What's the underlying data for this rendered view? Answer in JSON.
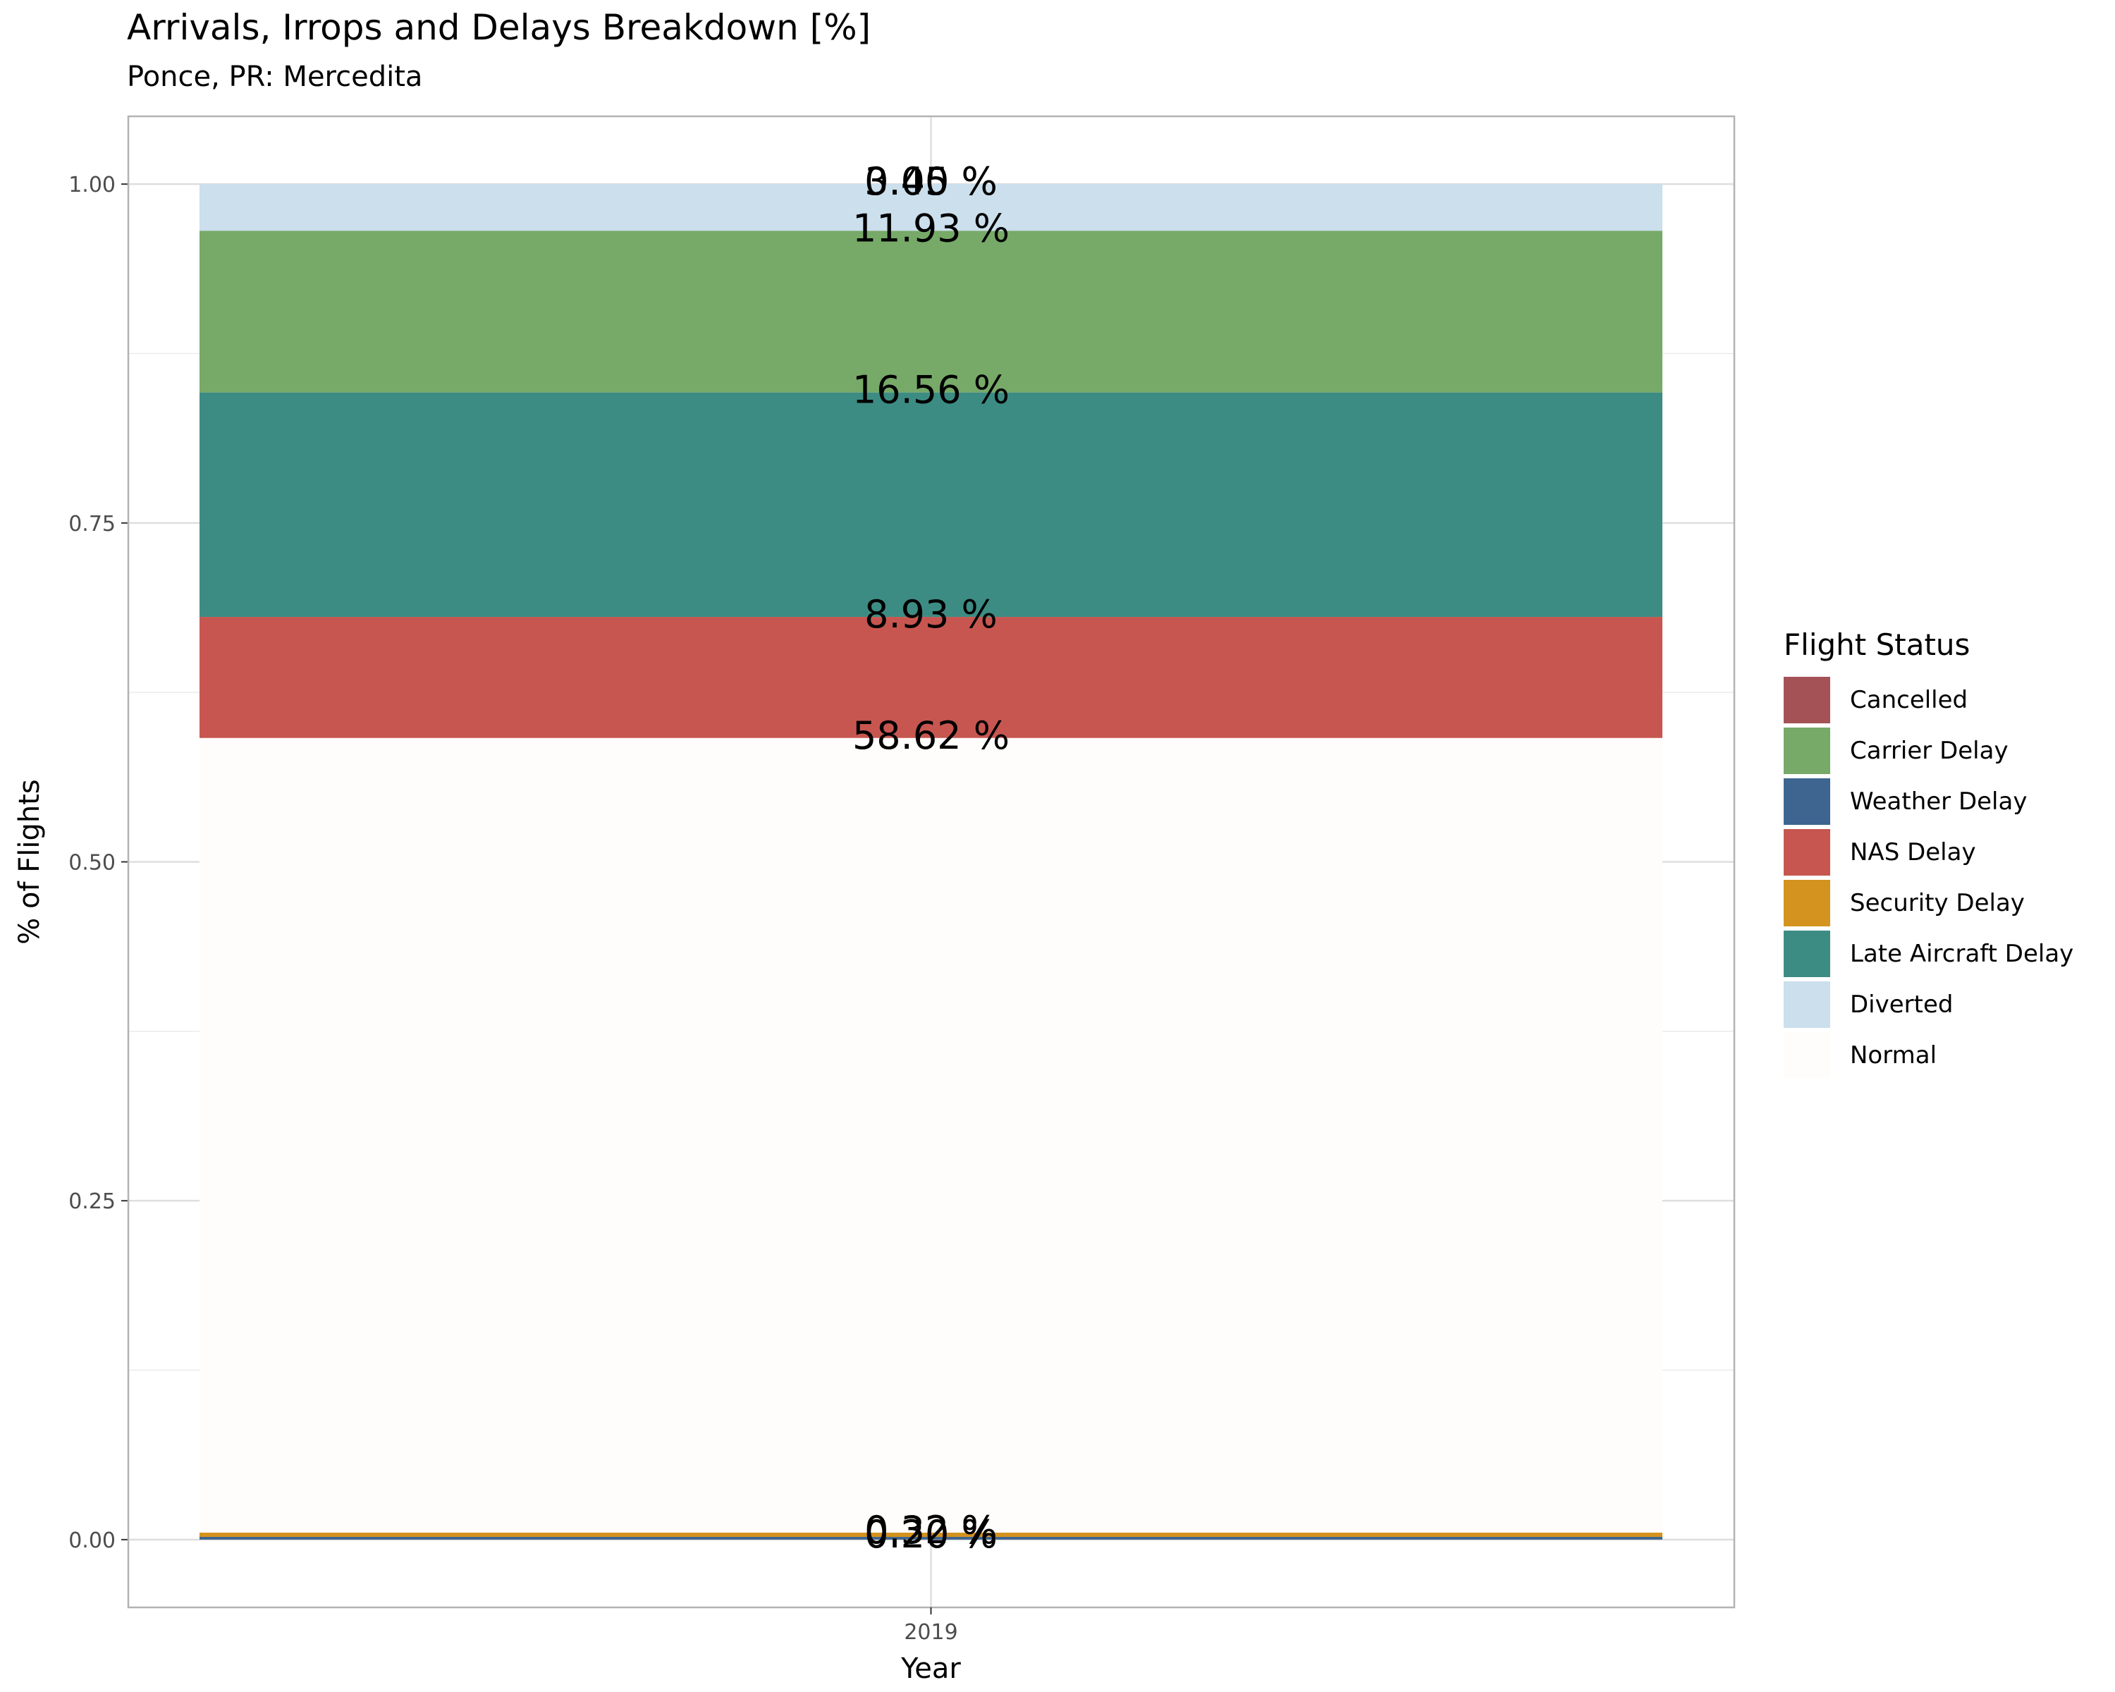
{
  "chart_data": {
    "type": "bar",
    "stacked": true,
    "title": "Arrivals, Irrops and Delays Breakdown [%]",
    "subtitle": "Ponce, PR: Mercedita",
    "xlabel": "Year",
    "ylabel": "% of Flights",
    "categories": [
      "2019"
    ],
    "ylim": [
      -0.05,
      1.05
    ],
    "yticks": [
      "0.00",
      "0.25",
      "0.50",
      "0.75",
      "1.00"
    ],
    "grid": true,
    "legend": {
      "title": "Flight Status",
      "position": "right"
    },
    "series": [
      {
        "name": "Weather Delay",
        "color": "#3d6590",
        "values": [
          0.002
        ],
        "label": "0.20 %"
      },
      {
        "name": "Security Delay",
        "color": "#d4921e",
        "values": [
          0.0032
        ],
        "label": "0.32 %"
      },
      {
        "name": "Normal",
        "color": "#fffdfb",
        "values": [
          0.5862
        ],
        "label": "58.62 %"
      },
      {
        "name": "NAS Delay",
        "color": "#c75650",
        "values": [
          0.0893
        ],
        "label": "8.93 %"
      },
      {
        "name": "Late Aircraft Delay",
        "color": "#3d8c84",
        "values": [
          0.1656
        ],
        "label": "16.56 %"
      },
      {
        "name": "Carrier Delay",
        "color": "#77a968",
        "values": [
          0.1193
        ],
        "label": "11.93 %"
      },
      {
        "name": "Diverted",
        "color": "#cbdfed",
        "values": [
          0.0345
        ],
        "label": "3.45 %"
      },
      {
        "name": "Cancelled",
        "color": "#a55256",
        "values": [
          0.0
        ],
        "label": "0.00 %"
      }
    ],
    "legend_order": [
      "Cancelled",
      "Carrier Delay",
      "Weather Delay",
      "NAS Delay",
      "Security Delay",
      "Late Aircraft Delay",
      "Diverted",
      "Normal"
    ]
  }
}
